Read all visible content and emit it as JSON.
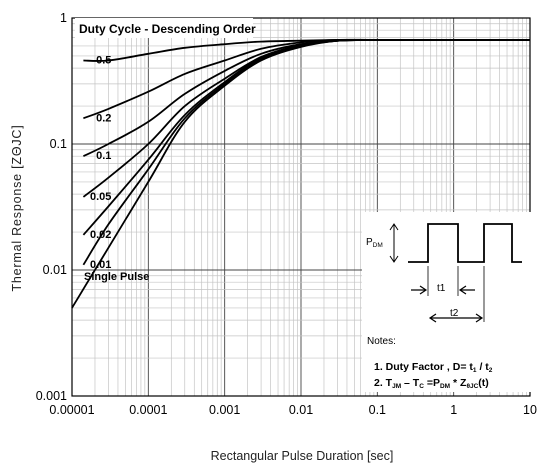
{
  "chart_data": {
    "type": "line",
    "title": "",
    "legend_title": "Duty Cycle - Descending Order",
    "xlabel": "Rectangular Pulse Duration [sec]",
    "ylabel": "Thermal Response  [ZΘJC]",
    "xscale": "log",
    "yscale": "log",
    "xlim": [
      1e-05,
      10
    ],
    "ylim": [
      0.001,
      1
    ],
    "grid": true,
    "x_tick_labels": [
      "0.00001",
      "0.0001",
      "0.001",
      "0.01",
      "0.1",
      "1",
      "10"
    ],
    "y_tick_labels": [
      "0.001",
      "0.01",
      "0.1",
      "1"
    ],
    "series": [
      {
        "name": "0.5",
        "x": [
          1.41e-05,
          3e-05,
          0.0001,
          0.0003,
          0.001,
          0.003,
          0.01,
          0.03,
          0.1,
          1,
          10
        ],
        "y": [
          0.46,
          0.46,
          0.52,
          0.58,
          0.62,
          0.65,
          0.66,
          0.67,
          0.67,
          0.67,
          0.67
        ]
      },
      {
        "name": "0.2",
        "x": [
          1.41e-05,
          3e-05,
          0.0001,
          0.0003,
          0.001,
          0.003,
          0.01,
          0.03,
          0.1,
          1,
          10
        ],
        "y": [
          0.16,
          0.19,
          0.26,
          0.36,
          0.46,
          0.57,
          0.64,
          0.67,
          0.67,
          0.67,
          0.67
        ]
      },
      {
        "name": "0.1",
        "x": [
          1.41e-05,
          3e-05,
          0.0001,
          0.0003,
          0.001,
          0.003,
          0.01,
          0.03,
          0.1,
          1,
          10
        ],
        "y": [
          0.08,
          0.1,
          0.15,
          0.25,
          0.38,
          0.52,
          0.62,
          0.66,
          0.67,
          0.67,
          0.67
        ]
      },
      {
        "name": "0.05",
        "x": [
          1.41e-05,
          3e-05,
          0.0001,
          0.0003,
          0.001,
          0.003,
          0.01,
          0.03,
          0.1,
          1,
          10
        ],
        "y": [
          0.038,
          0.054,
          0.1,
          0.2,
          0.33,
          0.49,
          0.61,
          0.66,
          0.67,
          0.67,
          0.67
        ]
      },
      {
        "name": "0.02",
        "x": [
          1.41e-05,
          3e-05,
          0.0001,
          0.0003,
          0.001,
          0.003,
          0.01,
          0.03,
          0.1,
          1,
          10
        ],
        "y": [
          0.019,
          0.032,
          0.075,
          0.17,
          0.31,
          0.48,
          0.6,
          0.66,
          0.67,
          0.67,
          0.67
        ]
      },
      {
        "name": "0.01",
        "x": [
          1.41e-05,
          3e-05,
          0.0001,
          0.0003,
          0.001,
          0.003,
          0.01,
          0.03,
          0.1,
          1,
          10
        ],
        "y": [
          0.011,
          0.023,
          0.063,
          0.16,
          0.3,
          0.47,
          0.6,
          0.66,
          0.67,
          0.67,
          0.67
        ]
      },
      {
        "name": "Single Pulse",
        "x": [
          1e-05,
          1.5e-05,
          3e-05,
          0.0001,
          0.0003,
          0.001,
          0.003,
          0.01,
          0.03,
          0.1,
          1,
          10
        ],
        "y": [
          0.005,
          0.0075,
          0.015,
          0.05,
          0.15,
          0.29,
          0.46,
          0.59,
          0.66,
          0.67,
          0.67,
          0.67
        ]
      }
    ],
    "inset": {
      "pdm_label": "PDM",
      "t1_label": "t1",
      "t2_label": "t2",
      "notes_label": "Notes:",
      "note1_prefix": "1. Duty Factor ,  D= t",
      "note1_sub1": "1",
      "note1_mid": " / t",
      "note1_sub2": "2",
      "note2_prefix": "2. T",
      "note2_sub1": "JM",
      "note2_mid1": " – T",
      "note2_sub2": "C",
      "note2_mid2": "  =P",
      "note2_sub3": "DM",
      "note2_mid3": " * Z",
      "note2_sub4": "θJC",
      "note2_end": "(t)"
    }
  }
}
